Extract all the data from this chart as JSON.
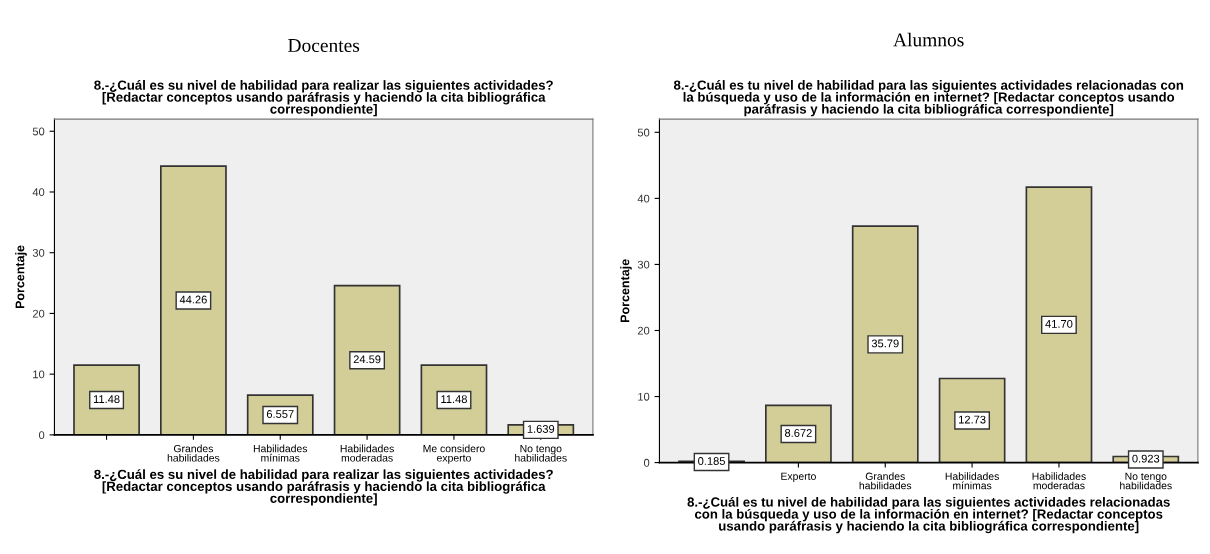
{
  "chart_data": [
    {
      "type": "bar",
      "title": "Docentes",
      "subtitle": "8.-¿Cuál es su nivel de habilidad para realizar las siguientes actividades?\n[Redactar conceptos usando paráfrasis y haciendo la cita bibliográfica\ncorrespondiente]",
      "xlabel": "8.-¿Cuál es su nivel de habilidad para realizar las siguientes actividades?\n[Redactar conceptos usando paráfrasis y haciendo la cita bibliográfica\ncorrespondiente]",
      "ylabel": "Porcentaje",
      "categories": [
        null,
        "Grandes\nhabilidades",
        "Habilidades\nmínimas",
        "Habilidades\nmoderadas",
        "Me considero\nexperto",
        "No tengo\nhabilidades"
      ],
      "values": [
        11.48,
        44.26,
        6.557,
        24.59,
        11.48,
        1.639
      ],
      "color": "#d3ce97",
      "value_labels": [
        "11.48",
        "44.26",
        "6.557",
        "24.59",
        "11.48",
        "1.639"
      ],
      "ylim": [
        0,
        52
      ],
      "yticks": [
        0,
        10,
        20,
        30,
        40,
        50
      ],
      "grid": false,
      "legend": false
    },
    {
      "type": "bar",
      "title": "Alumnos",
      "subtitle": "8.-¿Cuál es tu nivel de habilidad para las siguientes actividades relacionadas con\nla búsqueda y uso de la información en internet? [Redactar conceptos usando\nparáfrasis y haciendo la cita bibliográfica correspondiente]",
      "xlabel": "8.-¿Cuál es tu nivel de habilidad para las siguientes actividades relacionadas\ncon la búsqueda y uso de la información en internet? [Redactar conceptos\nusando paráfrasis y haciendo la cita bibliográfica correspondiente]",
      "ylabel": "Porcentaje",
      "categories": [
        null,
        "Experto",
        "Grandes\nhabilidades",
        "Habilidades\nmínimas",
        "Habilidades\nmoderadas",
        "No tengo\nhabilidades"
      ],
      "values": [
        0.185,
        8.672,
        35.79,
        12.73,
        41.7,
        0.923
      ],
      "color": "#d3ce97",
      "value_labels": [
        "0.185",
        "8.672",
        "35.79",
        "12.73",
        "41.70",
        "0.923"
      ],
      "ylim": [
        0,
        52
      ],
      "yticks": [
        0,
        10,
        20,
        30,
        40,
        50
      ],
      "grid": false,
      "legend": false
    }
  ]
}
